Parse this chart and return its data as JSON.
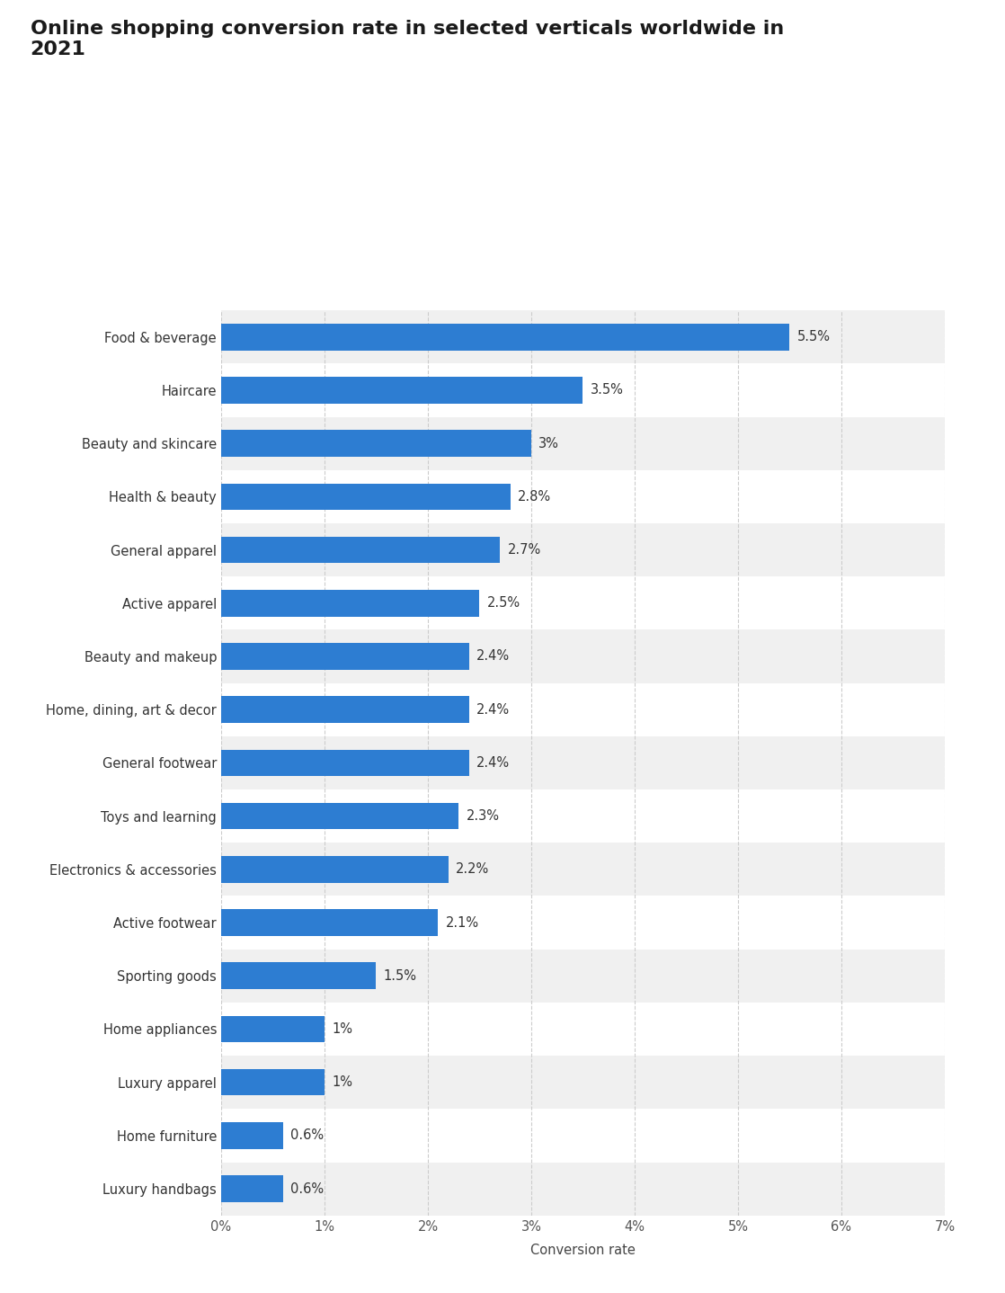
{
  "title": "Online shopping conversion rate in selected verticals worldwide in\n2021",
  "categories": [
    "Luxury handbags",
    "Home furniture",
    "Luxury apparel",
    "Home appliances",
    "Sporting goods",
    "Active footwear",
    "Electronics & accessories",
    "Toys and learning",
    "General footwear",
    "Home, dining, art & decor",
    "Beauty and makeup",
    "Active apparel",
    "General apparel",
    "Health & beauty",
    "Beauty and skincare",
    "Haircare",
    "Food & beverage"
  ],
  "values": [
    0.6,
    0.6,
    1.0,
    1.0,
    1.5,
    2.1,
    2.2,
    2.3,
    2.4,
    2.4,
    2.4,
    2.5,
    2.7,
    2.8,
    3.0,
    3.5,
    5.5
  ],
  "labels": [
    "0.6%",
    "0.6%",
    "1%",
    "1%",
    "1.5%",
    "2.1%",
    "2.2%",
    "2.3%",
    "2.4%",
    "2.4%",
    "2.4%",
    "2.5%",
    "2.7%",
    "2.8%",
    "3%",
    "3.5%",
    "5.5%"
  ],
  "bar_color": "#2d7dd2",
  "background_color": "#ffffff",
  "plot_background": "#ffffff",
  "row_even_color": "#f0f0f0",
  "row_odd_color": "#ffffff",
  "xlabel": "Conversion rate",
  "xlim": [
    0,
    7
  ],
  "xticks": [
    0,
    1,
    2,
    3,
    4,
    5,
    6,
    7
  ],
  "xtick_labels": [
    "0%",
    "1%",
    "2%",
    "3%",
    "4%",
    "5%",
    "6%",
    "7%"
  ],
  "title_fontsize": 16,
  "label_fontsize": 10.5,
  "tick_fontsize": 10.5,
  "xlabel_fontsize": 10.5,
  "bar_height": 0.5
}
